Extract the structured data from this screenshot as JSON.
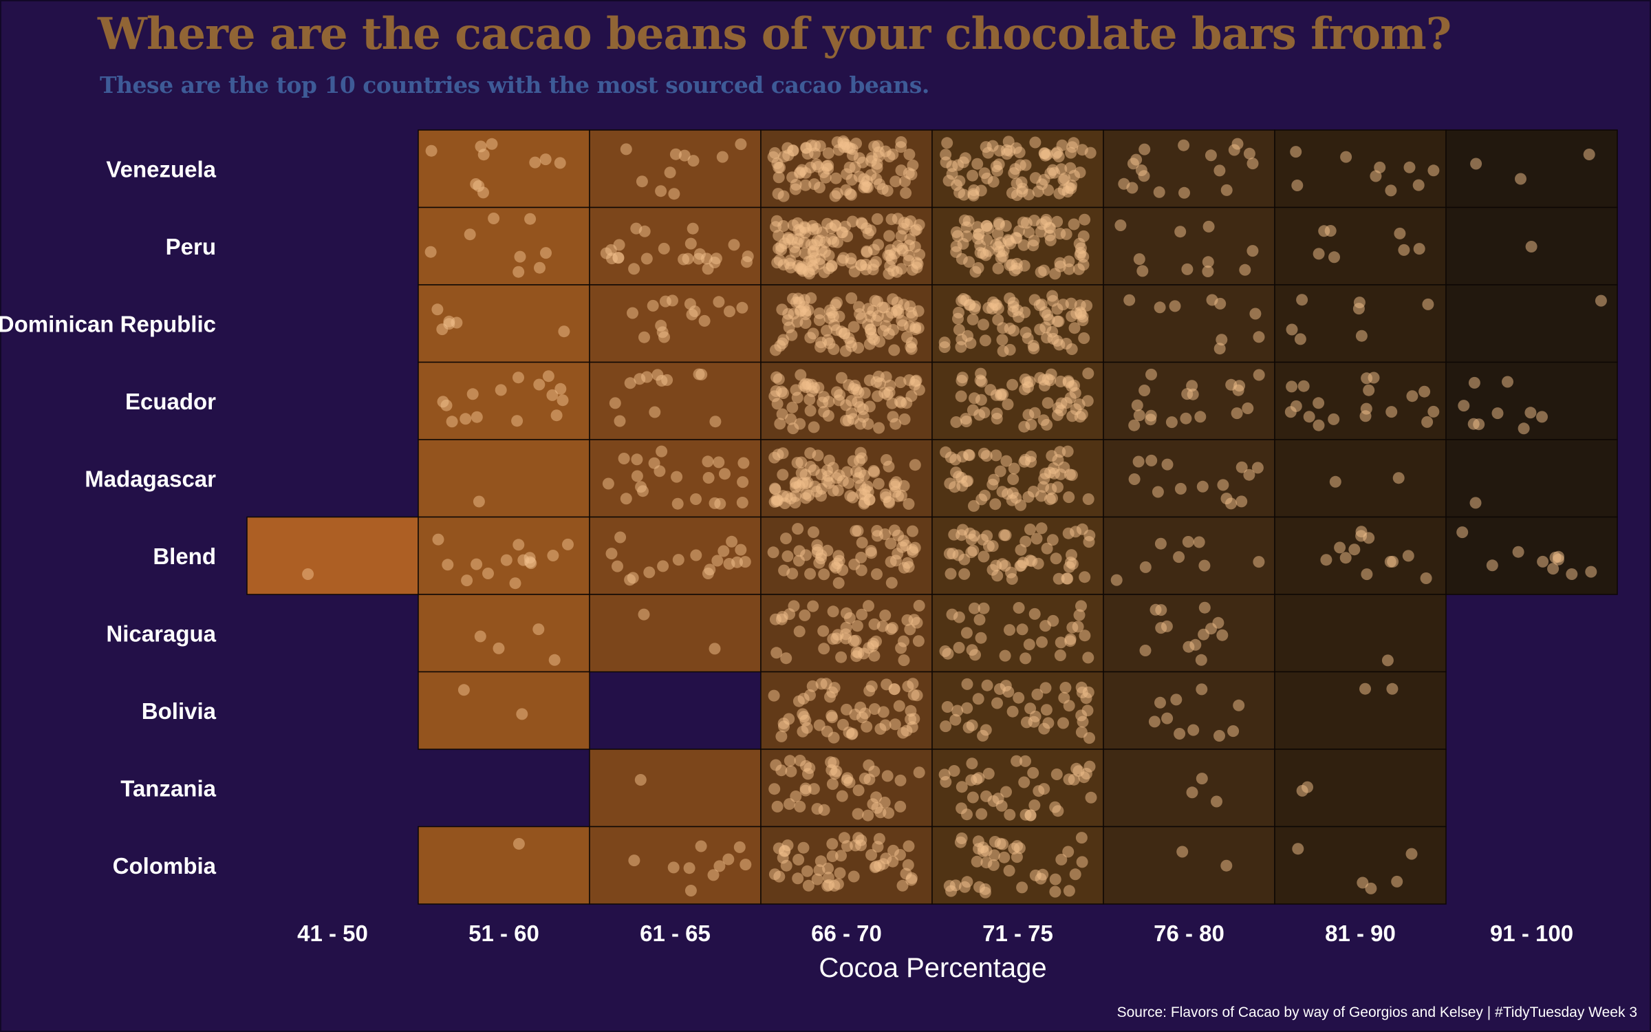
{
  "title": "Where are the cacao beans of your chocolate bars from?",
  "subtitle": "These are the top 10 countries with the most sourced cacao beans.",
  "source": "Source: Flavors of Cacao by way of Georgios and Kelsey | #TidyTuesday Week 3",
  "colors": {
    "background": "#231048",
    "title": "#916535",
    "subtitle": "#3e5b97",
    "point": "#f2c08c",
    "bin_fills": [
      "#ad5f24",
      "#94541e",
      "#7c461b",
      "#623a18",
      "#503314",
      "#3f2913",
      "#30200f",
      "#22180e"
    ]
  },
  "chart_data": {
    "type": "heatmap",
    "xlabel": "Cocoa Percentage",
    "ylabel": "",
    "x_categories": [
      "41 - 50",
      "51 - 60",
      "61 - 65",
      "66 - 70",
      "71 - 75",
      "76 - 80",
      "81 - 90",
      "91 - 100"
    ],
    "y_categories": [
      "Venezuela",
      "Peru",
      "Dominican Republic",
      "Ecuador",
      "Madagascar",
      "Blend",
      "Nicaragua",
      "Bolivia",
      "Tanzania",
      "Colombia"
    ],
    "cell_value": "number of chocolate bars (one jittered point per bar)",
    "counts": [
      [
        0,
        10,
        10,
        95,
        80,
        17,
        9,
        3
      ],
      [
        0,
        8,
        24,
        130,
        85,
        10,
        7,
        1
      ],
      [
        0,
        6,
        15,
        100,
        75,
        9,
        7,
        1
      ],
      [
        0,
        15,
        12,
        80,
        60,
        19,
        18,
        9
      ],
      [
        0,
        1,
        22,
        90,
        60,
        14,
        2,
        1
      ],
      [
        1,
        14,
        18,
        55,
        55,
        8,
        12,
        10
      ],
      [
        0,
        4,
        2,
        50,
        32,
        13,
        1,
        0
      ],
      [
        0,
        2,
        0,
        55,
        40,
        10,
        2,
        0
      ],
      [
        0,
        0,
        1,
        45,
        40,
        3,
        2,
        0
      ],
      [
        0,
        1,
        10,
        50,
        40,
        2,
        5,
        0
      ]
    ]
  }
}
